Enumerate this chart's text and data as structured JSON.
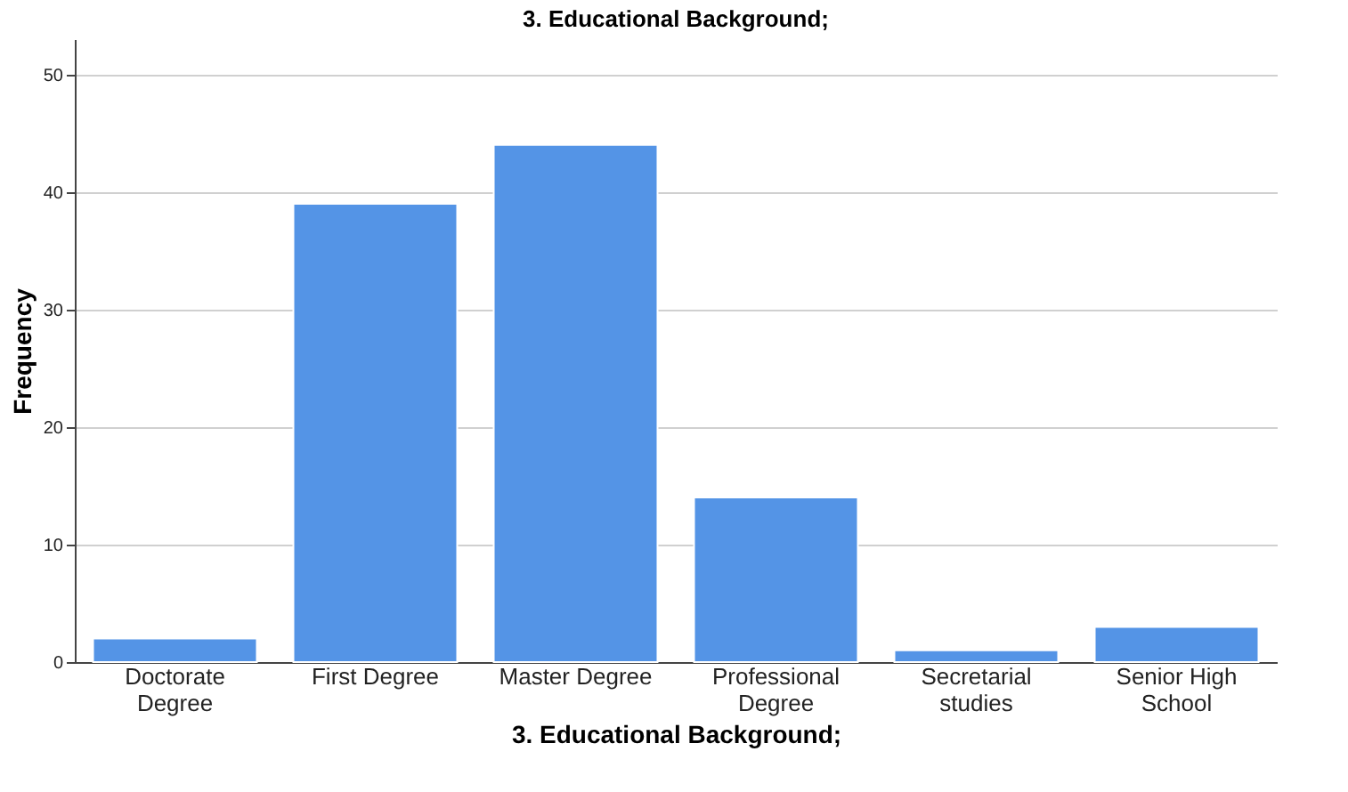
{
  "chart_data": {
    "type": "bar",
    "title": "3. Educational Background;",
    "xlabel": "3. Educational Background;",
    "ylabel": "Frequency",
    "categories": [
      "Doctorate Degree",
      "First Degree",
      "Master Degree",
      "Professional Degree",
      "Secretarial studies",
      "Senior High School"
    ],
    "values": [
      2,
      39,
      44,
      14,
      1,
      3
    ],
    "color": "#5494e6",
    "ylim": [
      0,
      53
    ],
    "yticks": [
      0,
      10,
      20,
      30,
      40,
      50
    ],
    "grid": "y"
  }
}
